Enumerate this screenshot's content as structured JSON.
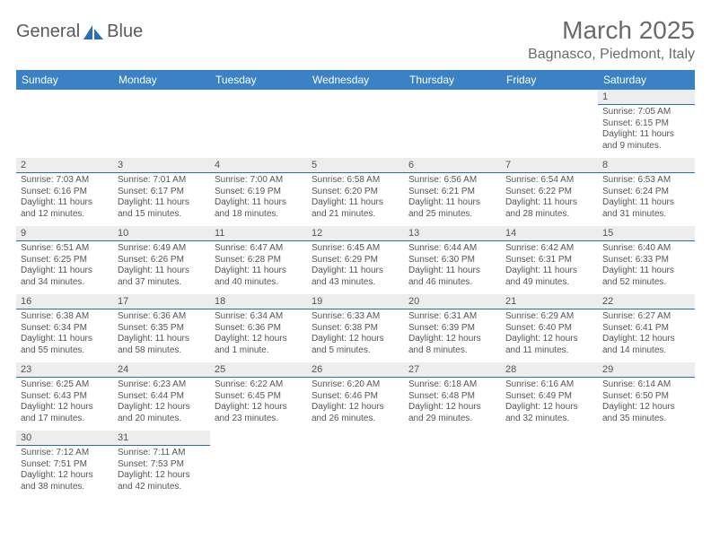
{
  "brand": {
    "name1": "General",
    "name2": "Blue"
  },
  "title": "March 2025",
  "subtitle": "Bagnasco, Piedmont, Italy",
  "colors": {
    "header_bg": "#3a82c4",
    "daynum_bg": "#ededed",
    "daynum_border": "#2a6db5",
    "text": "#555555"
  },
  "weekdays": [
    "Sunday",
    "Monday",
    "Tuesday",
    "Wednesday",
    "Thursday",
    "Friday",
    "Saturday"
  ],
  "weeks": [
    [
      {
        "empty": true
      },
      {
        "empty": true
      },
      {
        "empty": true
      },
      {
        "empty": true
      },
      {
        "empty": true
      },
      {
        "empty": true
      },
      {
        "day": "1",
        "sunrise": "7:05 AM",
        "sunset": "6:15 PM",
        "daylight": "11 hours and 9 minutes."
      }
    ],
    [
      {
        "day": "2",
        "sunrise": "7:03 AM",
        "sunset": "6:16 PM",
        "daylight": "11 hours and 12 minutes."
      },
      {
        "day": "3",
        "sunrise": "7:01 AM",
        "sunset": "6:17 PM",
        "daylight": "11 hours and 15 minutes."
      },
      {
        "day": "4",
        "sunrise": "7:00 AM",
        "sunset": "6:19 PM",
        "daylight": "11 hours and 18 minutes."
      },
      {
        "day": "5",
        "sunrise": "6:58 AM",
        "sunset": "6:20 PM",
        "daylight": "11 hours and 21 minutes."
      },
      {
        "day": "6",
        "sunrise": "6:56 AM",
        "sunset": "6:21 PM",
        "daylight": "11 hours and 25 minutes."
      },
      {
        "day": "7",
        "sunrise": "6:54 AM",
        "sunset": "6:22 PM",
        "daylight": "11 hours and 28 minutes."
      },
      {
        "day": "8",
        "sunrise": "6:53 AM",
        "sunset": "6:24 PM",
        "daylight": "11 hours and 31 minutes."
      }
    ],
    [
      {
        "day": "9",
        "sunrise": "6:51 AM",
        "sunset": "6:25 PM",
        "daylight": "11 hours and 34 minutes."
      },
      {
        "day": "10",
        "sunrise": "6:49 AM",
        "sunset": "6:26 PM",
        "daylight": "11 hours and 37 minutes."
      },
      {
        "day": "11",
        "sunrise": "6:47 AM",
        "sunset": "6:28 PM",
        "daylight": "11 hours and 40 minutes."
      },
      {
        "day": "12",
        "sunrise": "6:45 AM",
        "sunset": "6:29 PM",
        "daylight": "11 hours and 43 minutes."
      },
      {
        "day": "13",
        "sunrise": "6:44 AM",
        "sunset": "6:30 PM",
        "daylight": "11 hours and 46 minutes."
      },
      {
        "day": "14",
        "sunrise": "6:42 AM",
        "sunset": "6:31 PM",
        "daylight": "11 hours and 49 minutes."
      },
      {
        "day": "15",
        "sunrise": "6:40 AM",
        "sunset": "6:33 PM",
        "daylight": "11 hours and 52 minutes."
      }
    ],
    [
      {
        "day": "16",
        "sunrise": "6:38 AM",
        "sunset": "6:34 PM",
        "daylight": "11 hours and 55 minutes."
      },
      {
        "day": "17",
        "sunrise": "6:36 AM",
        "sunset": "6:35 PM",
        "daylight": "11 hours and 58 minutes."
      },
      {
        "day": "18",
        "sunrise": "6:34 AM",
        "sunset": "6:36 PM",
        "daylight": "12 hours and 1 minute."
      },
      {
        "day": "19",
        "sunrise": "6:33 AM",
        "sunset": "6:38 PM",
        "daylight": "12 hours and 5 minutes."
      },
      {
        "day": "20",
        "sunrise": "6:31 AM",
        "sunset": "6:39 PM",
        "daylight": "12 hours and 8 minutes."
      },
      {
        "day": "21",
        "sunrise": "6:29 AM",
        "sunset": "6:40 PM",
        "daylight": "12 hours and 11 minutes."
      },
      {
        "day": "22",
        "sunrise": "6:27 AM",
        "sunset": "6:41 PM",
        "daylight": "12 hours and 14 minutes."
      }
    ],
    [
      {
        "day": "23",
        "sunrise": "6:25 AM",
        "sunset": "6:43 PM",
        "daylight": "12 hours and 17 minutes."
      },
      {
        "day": "24",
        "sunrise": "6:23 AM",
        "sunset": "6:44 PM",
        "daylight": "12 hours and 20 minutes."
      },
      {
        "day": "25",
        "sunrise": "6:22 AM",
        "sunset": "6:45 PM",
        "daylight": "12 hours and 23 minutes."
      },
      {
        "day": "26",
        "sunrise": "6:20 AM",
        "sunset": "6:46 PM",
        "daylight": "12 hours and 26 minutes."
      },
      {
        "day": "27",
        "sunrise": "6:18 AM",
        "sunset": "6:48 PM",
        "daylight": "12 hours and 29 minutes."
      },
      {
        "day": "28",
        "sunrise": "6:16 AM",
        "sunset": "6:49 PM",
        "daylight": "12 hours and 32 minutes."
      },
      {
        "day": "29",
        "sunrise": "6:14 AM",
        "sunset": "6:50 PM",
        "daylight": "12 hours and 35 minutes."
      }
    ],
    [
      {
        "day": "30",
        "sunrise": "7:12 AM",
        "sunset": "7:51 PM",
        "daylight": "12 hours and 38 minutes."
      },
      {
        "day": "31",
        "sunrise": "7:11 AM",
        "sunset": "7:53 PM",
        "daylight": "12 hours and 42 minutes."
      },
      {
        "empty": true
      },
      {
        "empty": true
      },
      {
        "empty": true
      },
      {
        "empty": true
      },
      {
        "empty": true
      }
    ]
  ]
}
